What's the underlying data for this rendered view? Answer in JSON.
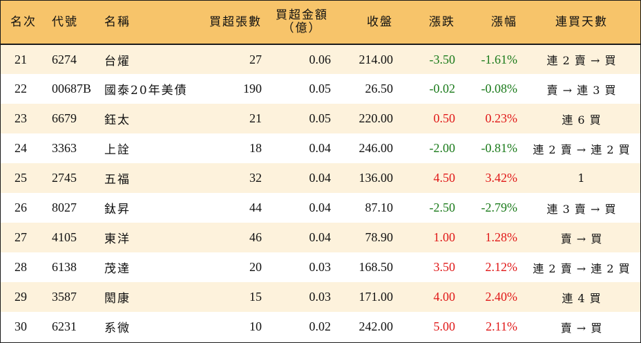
{
  "headers": {
    "rank": "名次",
    "code": "代號",
    "name": "名稱",
    "net_shares": "買超張數",
    "net_amount": "買超金額",
    "net_amount_unit": "（億）",
    "close": "收盤",
    "change": "漲跌",
    "change_pct": "漲幅",
    "streak": "連買天數"
  },
  "colors": {
    "header_bg": "#f7c46a",
    "stripe_bg": "#fdf2dc",
    "up": "#e01818",
    "down": "#1a7a1a"
  },
  "rows": [
    {
      "rank": "21",
      "code": "6274",
      "name": "台燿",
      "net_shares": "27",
      "net_amount": "0.06",
      "close": "214.00",
      "change": "-3.50",
      "change_pct": "-1.61%",
      "dir": "down",
      "streak": "連 2 賣 → 買"
    },
    {
      "rank": "22",
      "code": "00687B",
      "name": "國泰20年美債",
      "net_shares": "190",
      "net_amount": "0.05",
      "close": "26.50",
      "change": "-0.02",
      "change_pct": "-0.08%",
      "dir": "down",
      "streak": "賣 → 連 3 買"
    },
    {
      "rank": "23",
      "code": "6679",
      "name": "鈺太",
      "net_shares": "21",
      "net_amount": "0.05",
      "close": "220.00",
      "change": "0.50",
      "change_pct": "0.23%",
      "dir": "up",
      "streak": "連 6 買"
    },
    {
      "rank": "24",
      "code": "3363",
      "name": "上詮",
      "net_shares": "18",
      "net_amount": "0.04",
      "close": "246.00",
      "change": "-2.00",
      "change_pct": "-0.81%",
      "dir": "down",
      "streak": "連 2 賣 → 連 2 買"
    },
    {
      "rank": "25",
      "code": "2745",
      "name": "五福",
      "net_shares": "32",
      "net_amount": "0.04",
      "close": "136.00",
      "change": "4.50",
      "change_pct": "3.42%",
      "dir": "up",
      "streak": "1"
    },
    {
      "rank": "26",
      "code": "8027",
      "name": "鈦昇",
      "net_shares": "44",
      "net_amount": "0.04",
      "close": "87.10",
      "change": "-2.50",
      "change_pct": "-2.79%",
      "dir": "down",
      "streak": "連 3 賣 → 買"
    },
    {
      "rank": "27",
      "code": "4105",
      "name": "東洋",
      "net_shares": "46",
      "net_amount": "0.04",
      "close": "78.90",
      "change": "1.00",
      "change_pct": "1.28%",
      "dir": "up",
      "streak": "賣 → 買"
    },
    {
      "rank": "28",
      "code": "6138",
      "name": "茂達",
      "net_shares": "20",
      "net_amount": "0.03",
      "close": "168.50",
      "change": "3.50",
      "change_pct": "2.12%",
      "dir": "up",
      "streak": "連 2 賣 → 連 2 買"
    },
    {
      "rank": "29",
      "code": "3587",
      "name": "閎康",
      "net_shares": "15",
      "net_amount": "0.03",
      "close": "171.00",
      "change": "4.00",
      "change_pct": "2.40%",
      "dir": "up",
      "streak": "連 4 買"
    },
    {
      "rank": "30",
      "code": "6231",
      "name": "系微",
      "net_shares": "10",
      "net_amount": "0.02",
      "close": "242.00",
      "change": "5.00",
      "change_pct": "2.11%",
      "dir": "up",
      "streak": "賣 → 買"
    }
  ]
}
